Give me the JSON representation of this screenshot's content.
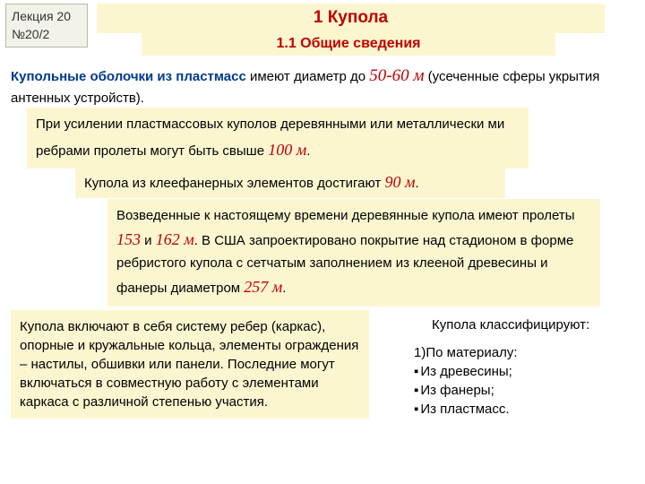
{
  "lecture": {
    "line1": "Лекция 20",
    "line2": "№20/2"
  },
  "title": "1 Купола",
  "subtitle": "1.1 Общие сведения",
  "p1": {
    "bold": "Купольные оболочки из пластмасс",
    "t1": " имеют диаметр до ",
    "num": "50-60 м",
    "t2": " (усеченные сферы укрытия антенных устройств)."
  },
  "b1": {
    "t1": "При усилении пластмассовых куполов деревянными или металлически ми ребрами пролеты могут быть свыше ",
    "num": "100 м",
    "t2": "."
  },
  "b2": {
    "t1": "Купола из клеефанерных элементов достигают  ",
    "num": "90 м",
    "t2": "."
  },
  "b3": {
    "t1": "Возведенные к настоящему времени деревянные купола имеют пролеты ",
    "n1": "153",
    "t2": " и ",
    "n2": "162 м",
    "t3": ". В США запроектировано покрытие над стадионом в форме ребристого купола с сетчатым заполнением из клееной древесины и фанеры диаметром ",
    "n3": "257 м",
    "t4": "."
  },
  "p2": "Купола включают в себя систему ребер (каркас), опорные и кружальные кольца, элементы ограждения – настилы, обшивки или панели. Последние могут включаться в совместную работу с элементами каркаса с различной степенью участия.",
  "classify": {
    "header": "Купола классифицируют:",
    "item1": "По материалу:",
    "sub": [
      "Из древесины;",
      "Из фанеры;",
      "Из пластмасс."
    ]
  },
  "colors": {
    "band_bg": "#fcf6d0",
    "title_red": "#c00000",
    "bold_blue": "#003a8c",
    "lecture_bg": "#f2f2e8"
  }
}
